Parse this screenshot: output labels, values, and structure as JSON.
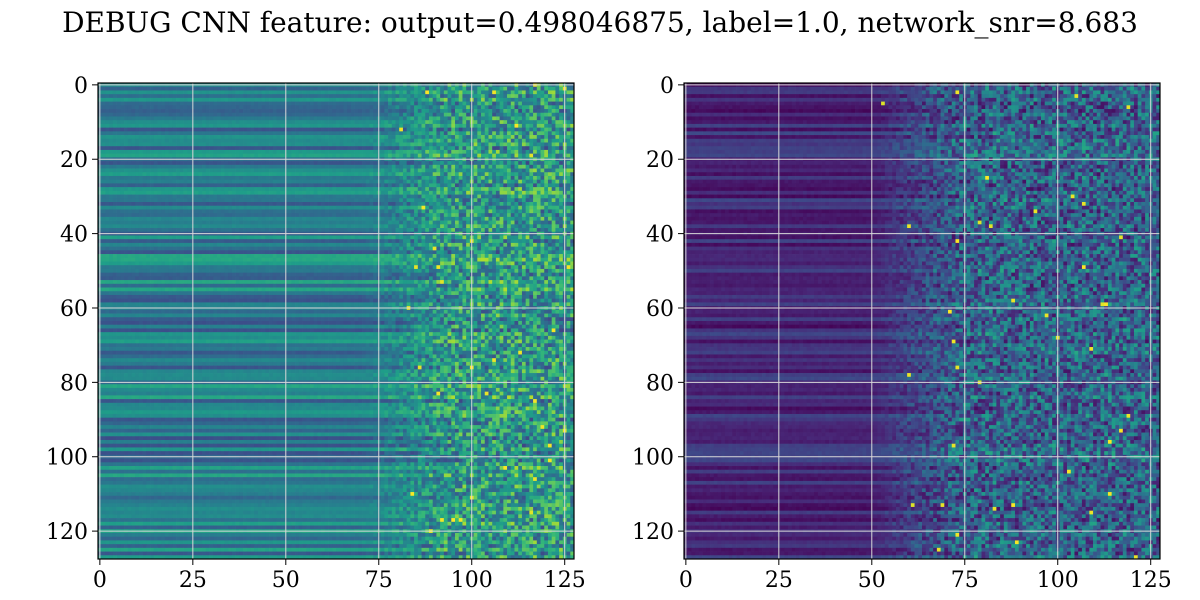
{
  "figure": {
    "title": "DEBUG CNN feature: output=0.498046875, label=1.0, network_snr=8.683"
  },
  "chart_data": [
    {
      "type": "heatmap",
      "title": "",
      "xlabel": "",
      "ylabel": "",
      "rows": 128,
      "cols": 128,
      "xlim": [
        0,
        127
      ],
      "ylim": [
        127,
        0
      ],
      "xticks": [
        0,
        25,
        50,
        75,
        100,
        125
      ],
      "yticks": [
        0,
        20,
        40,
        60,
        80,
        100,
        120
      ],
      "grid": true,
      "colormap": "viridis",
      "description_level": "left columns smooth horizontal bands (teal/green), right columns (x>70) noisy speckle with occasional yellow pixels",
      "pattern": {
        "band_level": 0.42,
        "band_amp": 0.18,
        "noise_start": 70,
        "noise_amp": 0.55
      }
    },
    {
      "type": "heatmap",
      "title": "",
      "xlabel": "",
      "ylabel": "",
      "rows": 128,
      "cols": 128,
      "xlim": [
        0,
        127
      ],
      "ylim": [
        127,
        0
      ],
      "xticks": [
        0,
        25,
        50,
        75,
        100,
        125
      ],
      "yticks": [
        0,
        20,
        40,
        60,
        80,
        100,
        120
      ],
      "grid": true,
      "colormap": "viridis",
      "description_level": "mostly dark purple bands on the left, speckled teal/green noise at x>50 with sparse yellow pixels",
      "pattern": {
        "band_level": 0.12,
        "band_amp": 0.1,
        "noise_start": 50,
        "noise_amp": 0.5
      }
    }
  ],
  "colors": {
    "viridis_low": "#440154",
    "viridis_mid": "#21918c",
    "viridis_high": "#fde725",
    "grid": "#d9d9d9"
  }
}
